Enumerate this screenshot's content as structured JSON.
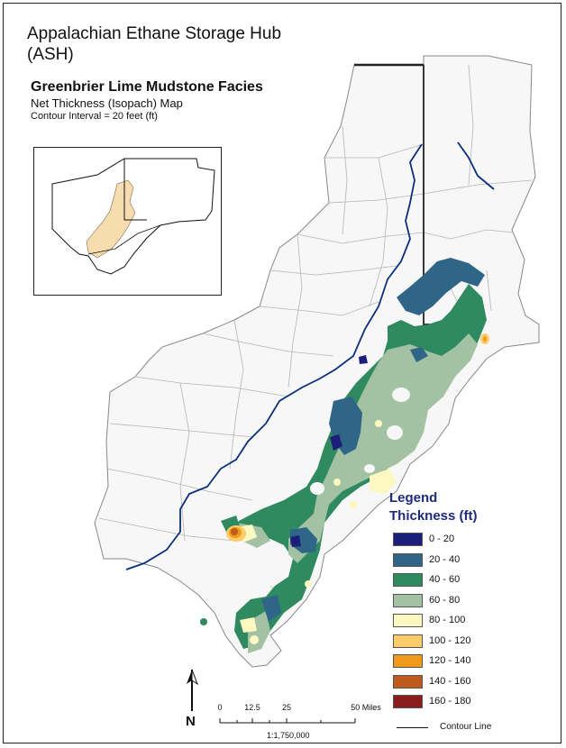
{
  "map": {
    "title_line1": "Appalachian Ethane Storage Hub",
    "title_line2": "(ASH)",
    "subtitle": "Greenbrier Lime Mudstone Facies",
    "map_type": "Net Thickness (Isopach) Map",
    "contour_interval": "Contour Interval = 20 feet (ft)"
  },
  "legend": {
    "title": "Legend",
    "subtitle": "Thickness (ft)",
    "items": [
      {
        "label": "0 - 20",
        "color": "#1c1f7a"
      },
      {
        "label": "20 - 40",
        "color": "#2f6688"
      },
      {
        "label": "40 - 60",
        "color": "#2f8a5f"
      },
      {
        "label": "60 - 80",
        "color": "#a3c2a3"
      },
      {
        "label": "80 - 100",
        "color": "#fcf8c2"
      },
      {
        "label": "100 - 120",
        "color": "#fccc6a"
      },
      {
        "label": "120 - 140",
        "color": "#f09a1c"
      },
      {
        "label": "140 - 160",
        "color": "#bf5a1e"
      },
      {
        "label": "160 - 180",
        "color": "#8a1e1e"
      }
    ],
    "contour_label": "Contour Line"
  },
  "scale": {
    "ticks": [
      "0",
      "12.5",
      "25",
      "50 Miles"
    ],
    "ratio": "1:1,750,000"
  },
  "north_arrow": "N",
  "colors": {
    "county_fill": "#f7f7f7",
    "county_border": "#9a9a9a",
    "river": "#0c2f7a",
    "state_border": "#222222",
    "inset_fill": "#f6dcae"
  }
}
